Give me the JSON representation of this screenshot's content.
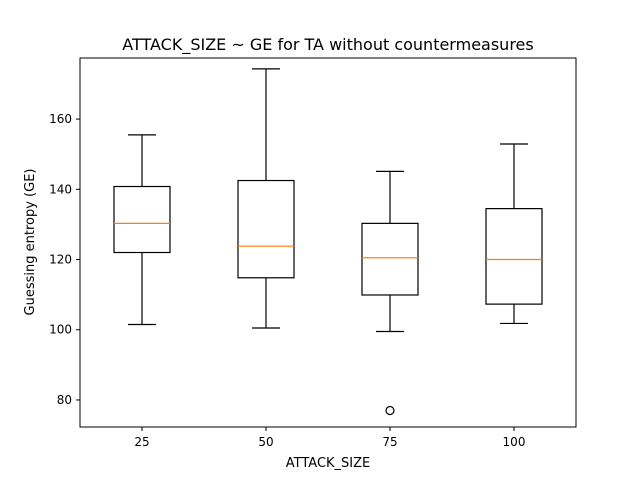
{
  "chart_data": {
    "type": "box",
    "title": "ATTACK_SIZE ~ GE for TA without countermeasures",
    "xlabel": "ATTACK_SIZE",
    "ylabel": "Guessing entropy (GE)",
    "ylim": [
      72.3,
      177.4
    ],
    "yticks": [
      80,
      100,
      120,
      140,
      160
    ],
    "categories": [
      "25",
      "50",
      "75",
      "100"
    ],
    "boxes": [
      {
        "category": "25",
        "whisker_low": 101.5,
        "q1": 122.0,
        "median": 130.3,
        "q3": 140.8,
        "whisker_high": 155.5,
        "outliers": []
      },
      {
        "category": "50",
        "whisker_low": 100.5,
        "q1": 114.8,
        "median": 123.8,
        "q3": 142.5,
        "whisker_high": 174.3,
        "outliers": []
      },
      {
        "category": "75",
        "whisker_low": 99.5,
        "q1": 109.9,
        "median": 120.5,
        "q3": 130.3,
        "whisker_high": 145.1,
        "outliers": [
          77.0
        ]
      },
      {
        "category": "100",
        "whisker_low": 101.8,
        "q1": 107.3,
        "median": 120.0,
        "q3": 134.5,
        "whisker_high": 152.9,
        "outliers": []
      }
    ],
    "grid": false,
    "box_color": "#000000",
    "median_color": "#ff7f0e"
  }
}
